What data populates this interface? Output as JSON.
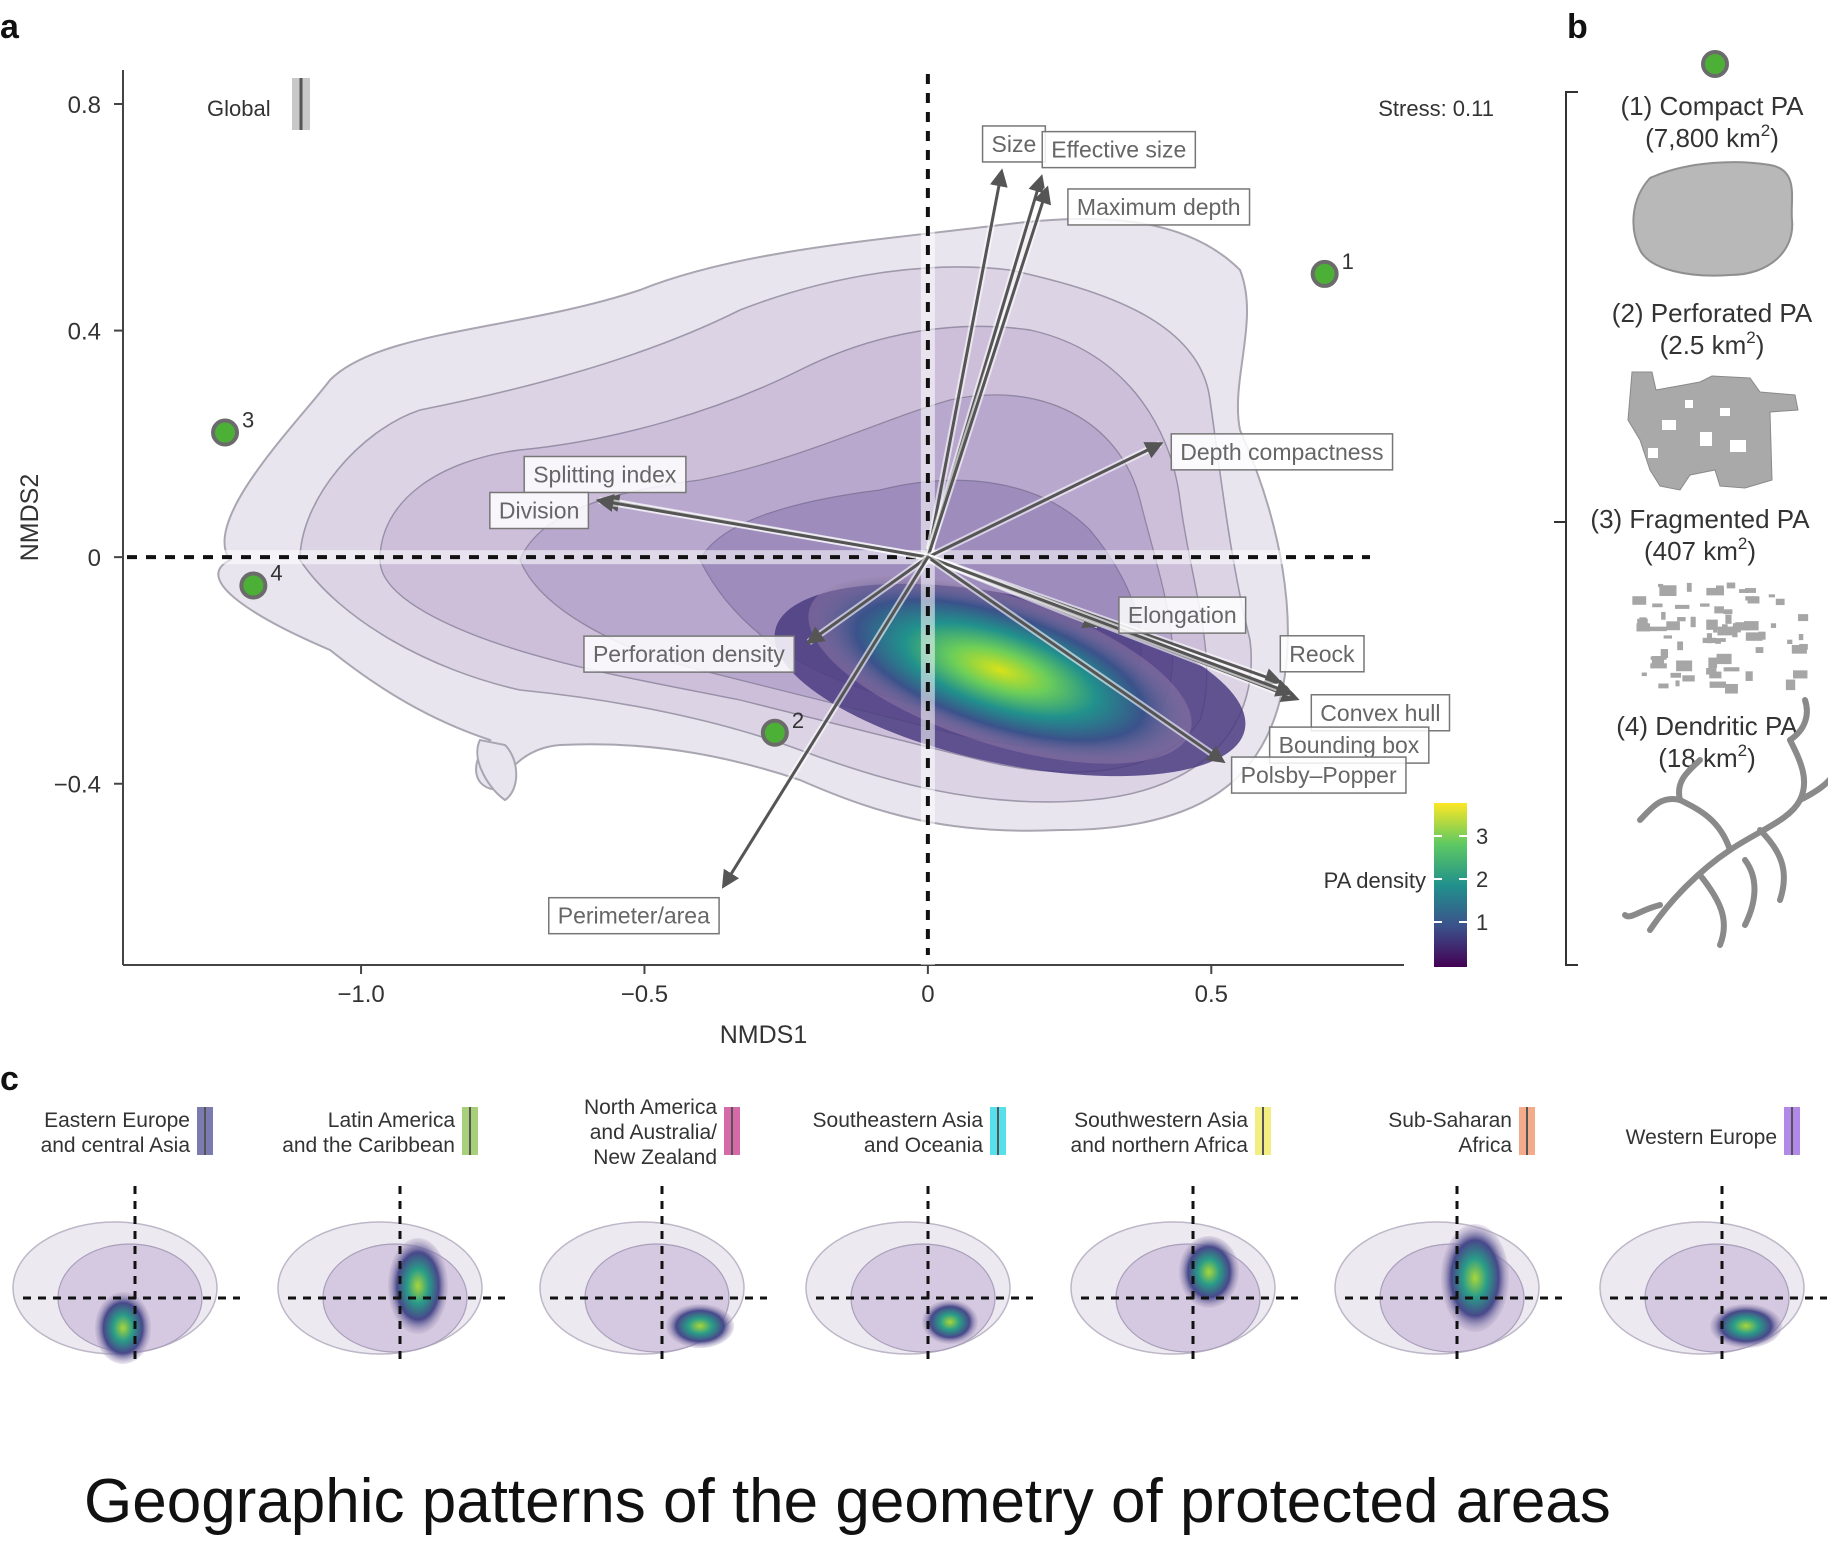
{
  "caption": "Geographic patterns of the geometry of protected areas",
  "chart_data": [
    {
      "panel": "a",
      "type": "scatter",
      "xlabel": "NMDS1",
      "ylabel": "NMDS2",
      "xlim": [
        -1.42,
        0.84
      ],
      "ylim": [
        -0.72,
        0.86
      ],
      "x_ticks": [
        -1.0,
        -0.5,
        0,
        0.5
      ],
      "x_tick_labels": [
        "−1.0",
        "−0.5",
        "0",
        "0.5"
      ],
      "y_ticks": [
        0.8,
        0.4,
        0,
        -0.4
      ],
      "y_tick_labels": [
        "0.8",
        "0.4",
        "0",
        "−0.4"
      ],
      "stress": "Stress: 0.11",
      "global_legend": "Global",
      "density_legend": {
        "title": "PA density",
        "ticks": [
          "3",
          "2",
          "1"
        ],
        "colormap": "viridis"
      },
      "points": [
        {
          "label": "1",
          "x": 0.7,
          "y": 0.5
        },
        {
          "label": "2",
          "x": -0.27,
          "y": -0.31
        },
        {
          "label": "3",
          "x": -1.24,
          "y": 0.22
        },
        {
          "label": "4",
          "x": -1.19,
          "y": -0.05
        }
      ],
      "vectors": [
        {
          "name": "Size",
          "x": 0.13,
          "y": 0.68
        },
        {
          "name": "Effective size",
          "x": 0.2,
          "y": 0.67
        },
        {
          "name": "Maximum depth",
          "x": 0.21,
          "y": 0.65
        },
        {
          "name": "Depth compactness",
          "x": 0.41,
          "y": 0.2
        },
        {
          "name": "Splitting index",
          "x": -0.57,
          "y": 0.1
        },
        {
          "name": "Division",
          "x": -0.58,
          "y": 0.1
        },
        {
          "name": "Elongation",
          "x": 0.3,
          "y": -0.12
        },
        {
          "name": "Reock",
          "x": 0.62,
          "y": -0.22
        },
        {
          "name": "Convex hull",
          "x": 0.65,
          "y": -0.25
        },
        {
          "name": "Bounding box",
          "x": 0.64,
          "y": -0.24
        },
        {
          "name": "Polsby–Popper",
          "x": 0.52,
          "y": -0.36
        },
        {
          "name": "Perforation density",
          "x": -0.21,
          "y": -0.15
        },
        {
          "name": "Perimeter/area",
          "x": -0.36,
          "y": -0.58
        }
      ]
    },
    {
      "panel": "c",
      "type": "heatmap",
      "regions": [
        {
          "name": "Eastern Europe and central Asia",
          "lines": [
            "Eastern Europe",
            "and central Asia"
          ],
          "color": "#7b7bb0"
        },
        {
          "name": "Latin America and the Caribbean",
          "lines": [
            "Latin America",
            "and the Caribbean"
          ],
          "color": "#a8cf7a"
        },
        {
          "name": "North America and Australia/New Zealand",
          "lines": [
            "North America",
            "and Australia/",
            "New Zealand"
          ],
          "color": "#d66aa8"
        },
        {
          "name": "Southeastern Asia and Oceania",
          "lines": [
            "Southeastern Asia",
            "and Oceania"
          ],
          "color": "#57e0ec"
        },
        {
          "name": "Southwestern Asia and northern Africa",
          "lines": [
            "Southwestern Asia",
            "and northern Africa"
          ],
          "color": "#f2ee82"
        },
        {
          "name": "Sub-Saharan Africa",
          "lines": [
            "Sub-Saharan",
            "Africa"
          ],
          "color": "#f3ab8a"
        },
        {
          "name": "Western Europe",
          "lines": [
            "Western Europe"
          ],
          "color": "#b288e8"
        }
      ]
    }
  ],
  "panel_b": {
    "shapes": [
      {
        "label": "(1) Compact PA",
        "area": "(7,800 km",
        "area_suffix": ")"
      },
      {
        "label": "(2) Perforated PA",
        "area": "(2.5 km",
        "area_suffix": ")"
      },
      {
        "label": "(3) Fragmented PA",
        "area": "(407 km",
        "area_suffix": ")"
      },
      {
        "label": "(4) Dendritic PA",
        "area": "(18 km",
        "area_suffix": ")"
      }
    ],
    "superscript": "2"
  },
  "panels": {
    "a": "a",
    "b": "b",
    "c": "c"
  },
  "colors": {
    "point_fill": "#4caf36",
    "point_stroke": "#6b6b6b",
    "arrow": "#555555",
    "contour": "#9a9aa6"
  }
}
